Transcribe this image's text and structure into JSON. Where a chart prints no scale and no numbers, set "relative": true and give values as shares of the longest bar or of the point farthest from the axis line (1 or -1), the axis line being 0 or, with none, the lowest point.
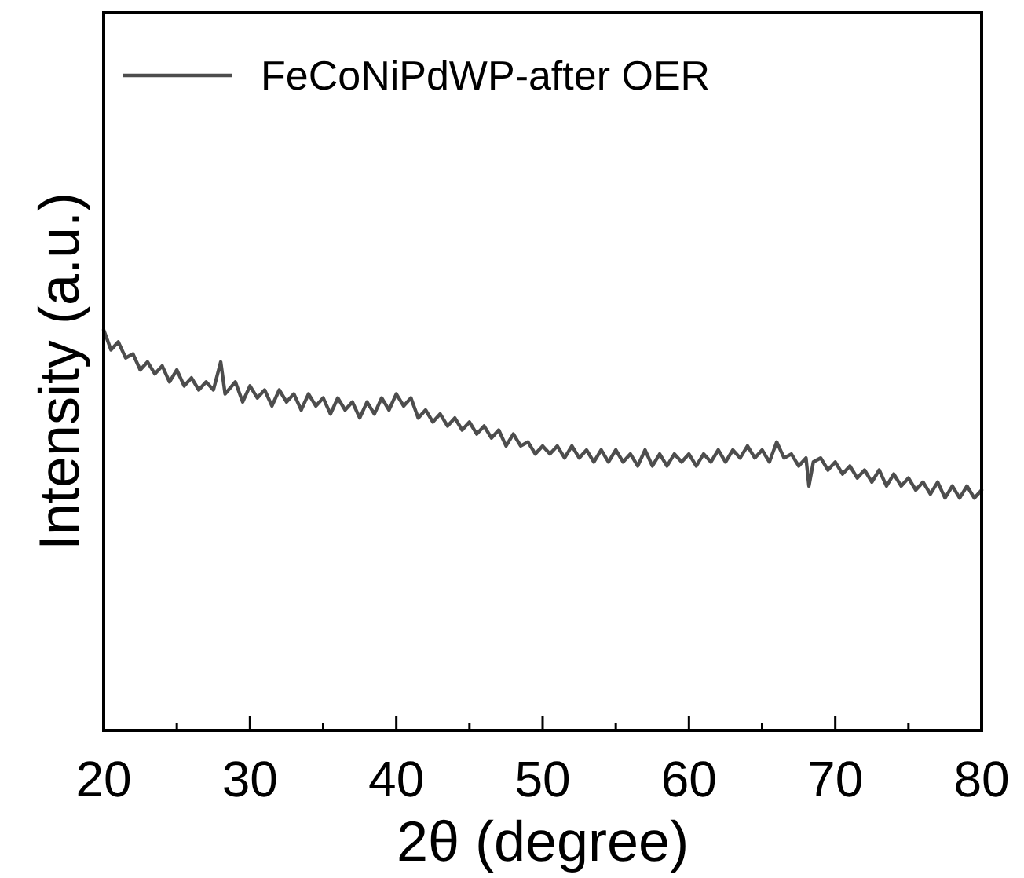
{
  "chart_data": {
    "type": "line",
    "relative": true,
    "xlabel": "2θ (degree)",
    "ylabel": "Intensity (a.u.)",
    "xlim": [
      20,
      80
    ],
    "xticks": [
      20,
      {
        "value": 25,
        "label": null
      },
      30,
      {
        "value": 35,
        "label": null
      },
      40,
      {
        "value": 45,
        "label": null
      },
      50,
      {
        "value": 55,
        "label": null
      },
      60,
      {
        "value": 65,
        "label": null
      },
      70,
      {
        "value": 75,
        "label": null
      },
      80
    ],
    "legend": "top left",
    "marker": "none",
    "line_style": "solid",
    "grid": false,
    "series": [
      {
        "name": "FeCoNiPdWP-after OER",
        "color": "#4d4d4d",
        "x": [
          20,
          20.5,
          21,
          21.5,
          22,
          22.5,
          23,
          23.5,
          24,
          24.5,
          25,
          25.5,
          26,
          26.5,
          27,
          27.5,
          28,
          28.3,
          29,
          29.5,
          30,
          30.5,
          31,
          31.5,
          32,
          32.5,
          33,
          33.5,
          34,
          34.5,
          35,
          35.5,
          36,
          36.5,
          37,
          37.5,
          38,
          38.5,
          39,
          39.5,
          40,
          40.5,
          41,
          41.5,
          42,
          42.5,
          43,
          43.5,
          44,
          44.5,
          45,
          45.5,
          46,
          46.5,
          47,
          47.5,
          48,
          48.5,
          49,
          49.5,
          50,
          50.5,
          51,
          51.5,
          52,
          52.5,
          53,
          53.5,
          54,
          54.5,
          55,
          55.5,
          56,
          56.5,
          57,
          57.5,
          58,
          58.5,
          59,
          59.5,
          60,
          60.5,
          61,
          61.5,
          62,
          62.5,
          63,
          63.5,
          64,
          64.5,
          65,
          65.5,
          66,
          66.5,
          67,
          67.5,
          68,
          68.2,
          68.5,
          69,
          69.5,
          70,
          70.5,
          71,
          71.5,
          72,
          72.5,
          73,
          73.5,
          74,
          74.5,
          75,
          75.5,
          76,
          76.5,
          77,
          77.5,
          78,
          78.5,
          79,
          79.5,
          80
        ],
        "values": [
          1.0,
          0.95,
          0.97,
          0.93,
          0.94,
          0.9,
          0.92,
          0.89,
          0.91,
          0.87,
          0.9,
          0.86,
          0.88,
          0.85,
          0.87,
          0.85,
          0.92,
          0.84,
          0.87,
          0.82,
          0.86,
          0.83,
          0.85,
          0.81,
          0.85,
          0.82,
          0.84,
          0.8,
          0.84,
          0.81,
          0.83,
          0.79,
          0.83,
          0.8,
          0.82,
          0.78,
          0.82,
          0.79,
          0.83,
          0.8,
          0.84,
          0.81,
          0.83,
          0.78,
          0.8,
          0.77,
          0.79,
          0.76,
          0.78,
          0.75,
          0.77,
          0.74,
          0.76,
          0.73,
          0.75,
          0.71,
          0.74,
          0.71,
          0.72,
          0.69,
          0.71,
          0.69,
          0.71,
          0.68,
          0.71,
          0.68,
          0.7,
          0.67,
          0.7,
          0.67,
          0.7,
          0.67,
          0.69,
          0.66,
          0.7,
          0.66,
          0.69,
          0.66,
          0.69,
          0.67,
          0.69,
          0.66,
          0.69,
          0.67,
          0.7,
          0.67,
          0.7,
          0.68,
          0.71,
          0.68,
          0.7,
          0.67,
          0.72,
          0.68,
          0.69,
          0.66,
          0.68,
          0.61,
          0.67,
          0.68,
          0.65,
          0.67,
          0.64,
          0.66,
          0.63,
          0.65,
          0.62,
          0.65,
          0.61,
          0.64,
          0.61,
          0.63,
          0.6,
          0.62,
          0.59,
          0.62,
          0.58,
          0.61,
          0.58,
          0.61,
          0.58,
          0.6
        ]
      }
    ]
  }
}
